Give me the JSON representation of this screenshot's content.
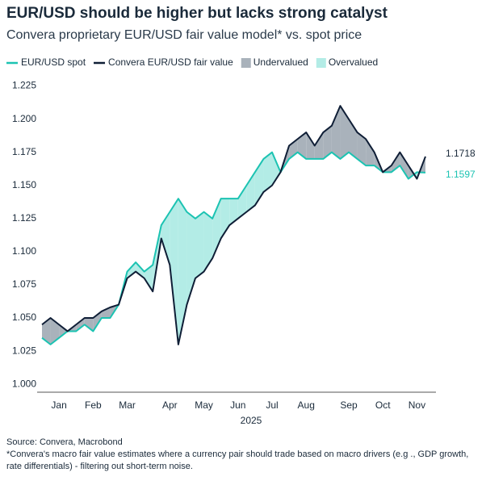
{
  "chart_data": {
    "type": "line",
    "title": "EUR/USD should be higher but lacks strong catalyst",
    "subtitle": "Convera proprietary EUR/USD fair value model* vs. spot price",
    "x_label": "2025",
    "categories": [
      null,
      null,
      "Jan",
      null,
      null,
      null,
      "Feb",
      null,
      null,
      null,
      "Mar",
      null,
      null,
      null,
      null,
      "Apr",
      null,
      null,
      null,
      "May",
      null,
      null,
      null,
      "Jun",
      null,
      null,
      null,
      "Jul",
      null,
      null,
      null,
      "Aug",
      null,
      null,
      null,
      null,
      "Sep",
      null,
      null,
      null,
      "Oct",
      null,
      null,
      null,
      "Nov",
      null
    ],
    "series": [
      {
        "name": "EUR/USD spot",
        "color": "#1cc3b2",
        "values": [
          1.035,
          1.03,
          1.035,
          1.04,
          1.04,
          1.045,
          1.04,
          1.05,
          1.05,
          1.06,
          1.085,
          1.092,
          1.085,
          1.09,
          1.12,
          1.13,
          1.14,
          1.13,
          1.125,
          1.13,
          1.125,
          1.14,
          1.14,
          1.14,
          1.15,
          1.16,
          1.17,
          1.175,
          1.16,
          1.17,
          1.175,
          1.17,
          1.17,
          1.17,
          1.175,
          1.17,
          1.175,
          1.17,
          1.165,
          1.165,
          1.16,
          1.16,
          1.165,
          1.155,
          1.16,
          1.1597
        ]
      },
      {
        "name": "Convera EUR/USD fair value",
        "color": "#0f1e36",
        "values": [
          1.045,
          1.05,
          1.045,
          1.04,
          1.045,
          1.05,
          1.05,
          1.055,
          1.058,
          1.06,
          1.08,
          1.085,
          1.08,
          1.07,
          1.11,
          1.09,
          1.03,
          1.06,
          1.08,
          1.085,
          1.095,
          1.11,
          1.12,
          1.125,
          1.13,
          1.135,
          1.145,
          1.15,
          1.16,
          1.18,
          1.185,
          1.19,
          1.18,
          1.19,
          1.195,
          1.21,
          1.2,
          1.19,
          1.185,
          1.175,
          1.16,
          1.165,
          1.175,
          1.165,
          1.155,
          1.1718
        ]
      }
    ],
    "areas": [
      {
        "name": "Undervalued",
        "color": "#a9b2bb"
      },
      {
        "name": "Overvalued",
        "color": "#b3ece6"
      }
    ],
    "ylim": [
      0.994,
      1.229
    ],
    "yticks": [
      {
        "value": 1,
        "label": "1.000"
      },
      1.025,
      {
        "value": 1.05,
        "label": "1.050"
      },
      1.075,
      {
        "value": 1.1,
        "label": "1.100"
      },
      1.125,
      {
        "value": 1.15,
        "label": "1.150"
      },
      1.175,
      {
        "value": 1.2,
        "label": "1.200"
      },
      1.225
    ],
    "grid": false,
    "legend": "top",
    "source": "Source: Convera, Macrobond",
    "footnote": "*Convera's macro fair value estimates where a currency pair should trade based on macro drivers (e.g ., GDP growth, rate differentials) - filtering out short-term noise."
  }
}
